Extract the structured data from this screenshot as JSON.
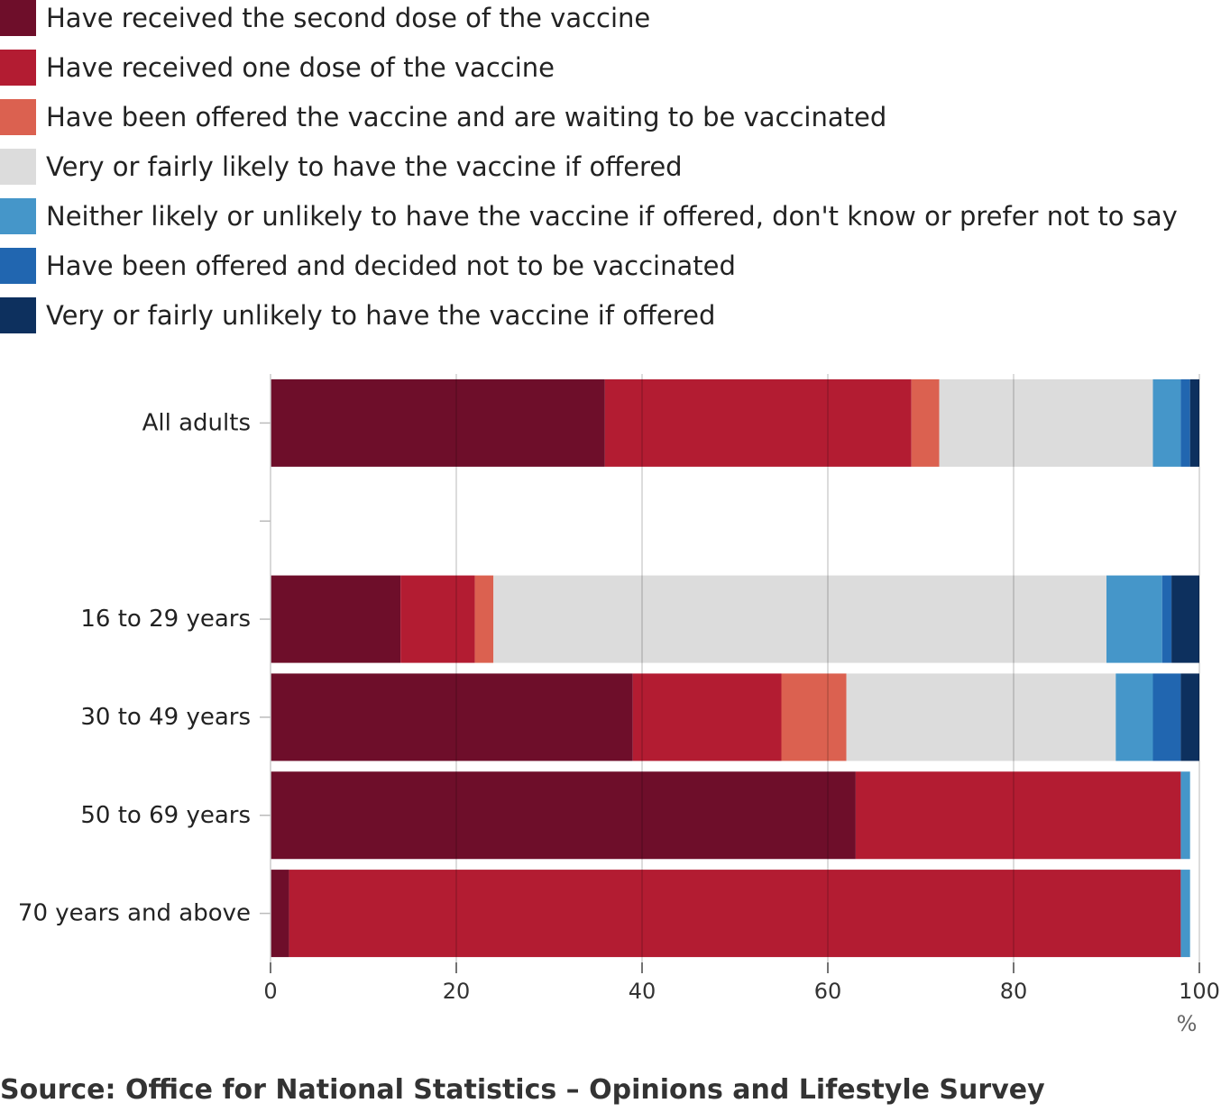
{
  "chart_data": {
    "type": "bar",
    "orientation": "horizontal",
    "stacked": true,
    "categories": [
      "All adults",
      "",
      "16 to 29 years",
      "30 to 49 years",
      "50 to 69 years",
      "70 years and above"
    ],
    "series": [
      {
        "name": "Have received the second dose of the vaccine",
        "color": "#6e0e2a",
        "values": [
          36,
          null,
          14,
          39,
          63,
          2
        ]
      },
      {
        "name": "Have received one dose of the vaccine",
        "color": "#b31c32",
        "values": [
          33,
          null,
          8,
          16,
          35,
          96
        ]
      },
      {
        "name": "Have been offered the vaccine and are waiting to be vaccinated",
        "color": "#db6150",
        "values": [
          3,
          null,
          2,
          7,
          0,
          0
        ]
      },
      {
        "name": "Very or fairly likely to have the vaccine if offered",
        "color": "#dcdcdc",
        "values": [
          23,
          null,
          66,
          29,
          0,
          0
        ]
      },
      {
        "name": "Neither likely or unlikely to have the vaccine if offered, don't know or prefer not to say",
        "color": "#4596c9",
        "values": [
          3,
          null,
          6,
          4,
          1,
          1
        ]
      },
      {
        "name": "Have been offered and decided not to be vaccinated",
        "color": "#2166b0",
        "values": [
          1,
          null,
          1,
          3,
          0,
          0
        ]
      },
      {
        "name": "Very or fairly unlikely to have the vaccine if offered",
        "color": "#0d305e",
        "values": [
          1,
          null,
          3,
          2,
          0,
          0
        ]
      }
    ],
    "xlim": [
      0,
      100
    ],
    "xticks": [
      "0",
      "20",
      "40",
      "60",
      "80",
      "100"
    ],
    "xunit": "%",
    "grid": true,
    "legend_position": "top-left"
  },
  "source": "Source: Office for National Statistics – Opinions and Lifestyle Survey"
}
